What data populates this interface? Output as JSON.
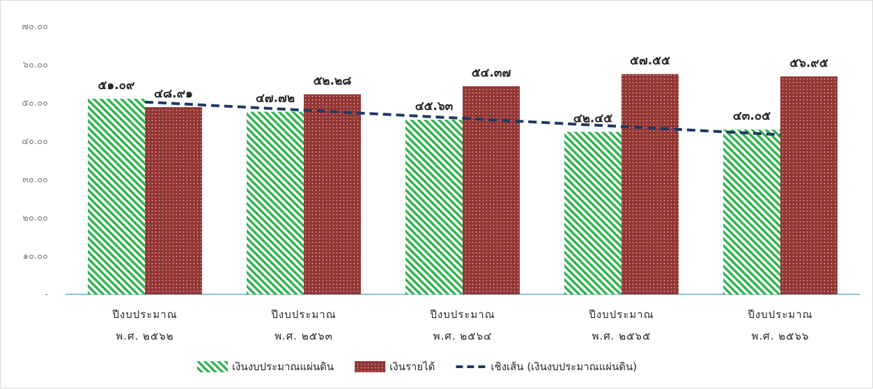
{
  "chart_data": {
    "type": "bar",
    "categories": [
      [
        "ปีงบประมาณ",
        "พ.ศ. ๒๕๖๒"
      ],
      [
        "ปีงบประมาณ",
        "พ.ศ. ๒๕๖๓"
      ],
      [
        "ปีงบประมาณ",
        "พ.ศ. ๒๕๖๔"
      ],
      [
        "ปีงบประมาณ",
        "พ.ศ. ๒๕๖๕"
      ],
      [
        "ปีงบประมาณ",
        "พ.ศ. ๒๕๖๖"
      ]
    ],
    "series": [
      {
        "name": "เงินงบประมาณแผ่นดิน",
        "values": [
          51.09,
          47.72,
          45.63,
          42.45,
          43.05
        ],
        "labels": [
          "๕๑.๐๙",
          "๔๗.๗๒",
          "๔๕.๖๓",
          "๔๒.๔๕",
          "๔๓.๐๕"
        ],
        "color": "#2db34a",
        "pattern": "diagonal-stripes"
      },
      {
        "name": "เงินรายได้",
        "values": [
          48.91,
          52.28,
          54.37,
          57.55,
          56.95
        ],
        "labels": [
          "๔๘.๙๑",
          "๕๒.๒๘",
          "๕๔.๓๗",
          "๕๗.๕๕",
          "๕๖.๙๕"
        ],
        "color": "#943634",
        "pattern": "dots"
      }
    ],
    "trendline": {
      "name": "เชิงเส้น (เงินงบประมาณแผ่นดิน)",
      "of_series": "เงินงบประมาณแผ่นดิน",
      "type": "linear",
      "color": "#1f3864",
      "style": "dashed"
    },
    "ylim": [
      0,
      70
    ],
    "yticks": [
      0,
      10,
      20,
      30,
      40,
      50,
      60,
      70
    ],
    "ytick_labels": [
      "-",
      "๑๐.๐๐",
      "๒๐.๐๐",
      "๓๐.๐๐",
      "๔๐.๐๐",
      "๕๐.๐๐",
      "๖๐.๐๐",
      "๗๐.๐๐"
    ],
    "title": "",
    "xlabel": "",
    "ylabel": "",
    "grid": false,
    "legend_position": "bottom"
  }
}
